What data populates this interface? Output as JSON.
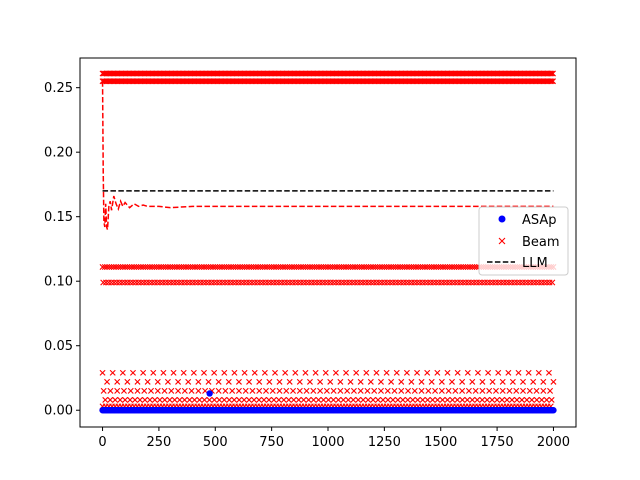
{
  "chart_data": {
    "type": "scatter",
    "title": "",
    "xlabel": "",
    "ylabel": "",
    "xlim": [
      -100,
      2100
    ],
    "ylim": [
      -0.013,
      0.273
    ],
    "x_ticks": [
      0,
      250,
      500,
      750,
      1000,
      1250,
      1500,
      1750,
      2000
    ],
    "x_tick_labels": [
      "0",
      "250",
      "500",
      "750",
      "1000",
      "1250",
      "1500",
      "1750",
      "2000"
    ],
    "y_ticks": [
      0.0,
      0.05,
      0.1,
      0.15,
      0.2,
      0.25
    ],
    "y_tick_labels": [
      "0.00",
      "0.05",
      "0.10",
      "0.15",
      "0.20",
      "0.25"
    ],
    "grid": false,
    "legend_position": "center-right",
    "series": [
      {
        "name": "ASAp",
        "kind": "scatter",
        "marker": "circle",
        "color": "#0000ff",
        "description_values": {
          "main_level": 0.0,
          "outlier": {
            "x": 475,
            "y": 0.013
          },
          "x_range": [
            0,
            2000
          ],
          "count": 2000
        }
      },
      {
        "name": "Beam",
        "kind": "scatter",
        "marker": "x",
        "color": "#ff0000",
        "levels": [
          0.261,
          0.255,
          0.111,
          0.099,
          0.029,
          0.022,
          0.015,
          0.008,
          0.003,
          0.0
        ],
        "x_range": [
          0,
          2000
        ]
      },
      {
        "name": "",
        "kind": "line",
        "style": "dashed",
        "color": "#ff0000",
        "x": [
          0,
          3,
          6,
          10,
          14,
          18,
          22,
          28,
          34,
          40,
          50,
          60,
          70,
          80,
          90,
          100,
          120,
          140,
          160,
          180,
          200,
          250,
          300,
          400,
          500,
          700,
          1000,
          1500,
          2000
        ],
        "y": [
          0.255,
          0.185,
          0.146,
          0.142,
          0.16,
          0.142,
          0.14,
          0.158,
          0.162,
          0.155,
          0.166,
          0.16,
          0.156,
          0.162,
          0.158,
          0.161,
          0.157,
          0.16,
          0.158,
          0.159,
          0.158,
          0.158,
          0.157,
          0.158,
          0.158,
          0.158,
          0.158,
          0.158,
          0.158
        ]
      },
      {
        "name": "LLM",
        "kind": "line",
        "style": "dashed",
        "color": "#000000",
        "x": [
          0,
          2000
        ],
        "y": [
          0.17,
          0.17
        ]
      }
    ]
  }
}
